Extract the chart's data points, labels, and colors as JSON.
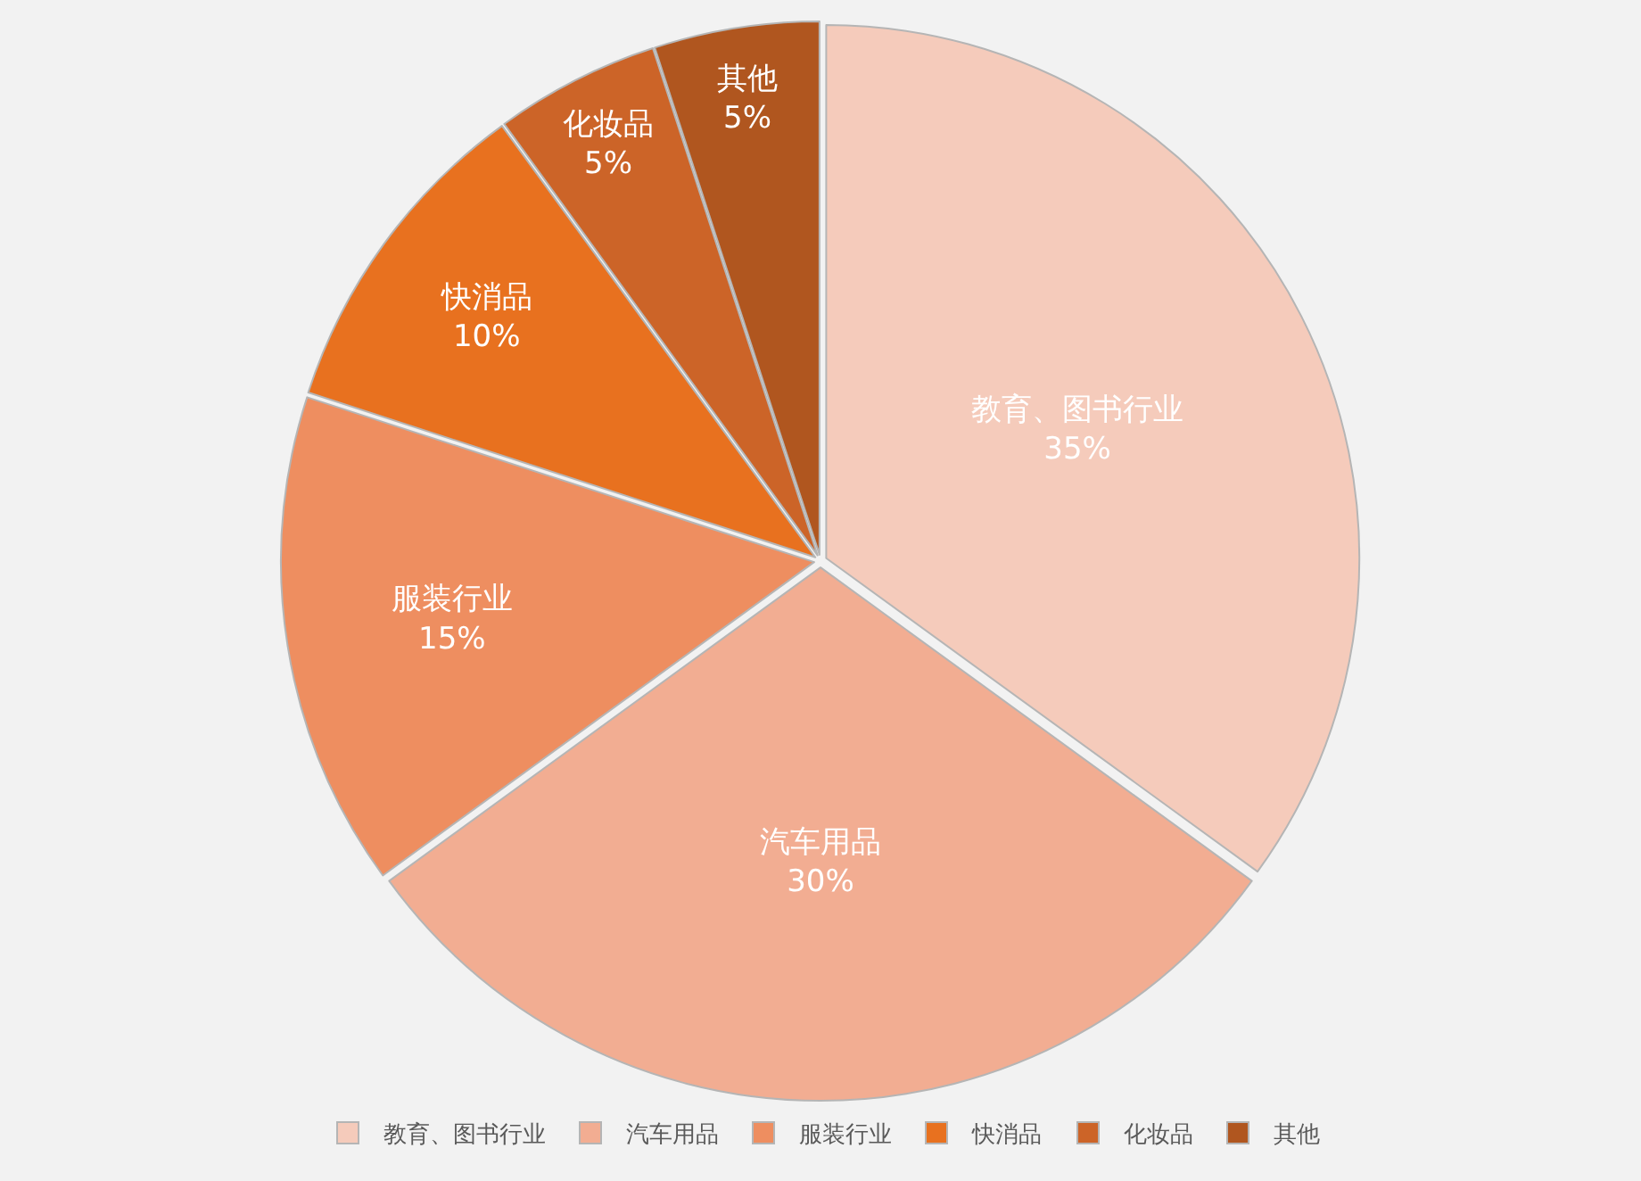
{
  "chart_data": {
    "type": "pie",
    "categories": [
      "教育、图书行业",
      "汽车用品",
      "服装行业",
      "快消品",
      "化妆品",
      "其他"
    ],
    "values": [
      35,
      30,
      15,
      10,
      5,
      5
    ],
    "value_labels": [
      "35%",
      "30%",
      "15%",
      "10%",
      "5%",
      "5%"
    ],
    "colors": [
      "#f5cbbb",
      "#f2ad92",
      "#ee8e60",
      "#e8711f",
      "#cc6428",
      "#b0561f"
    ],
    "legend": "bottom"
  }
}
